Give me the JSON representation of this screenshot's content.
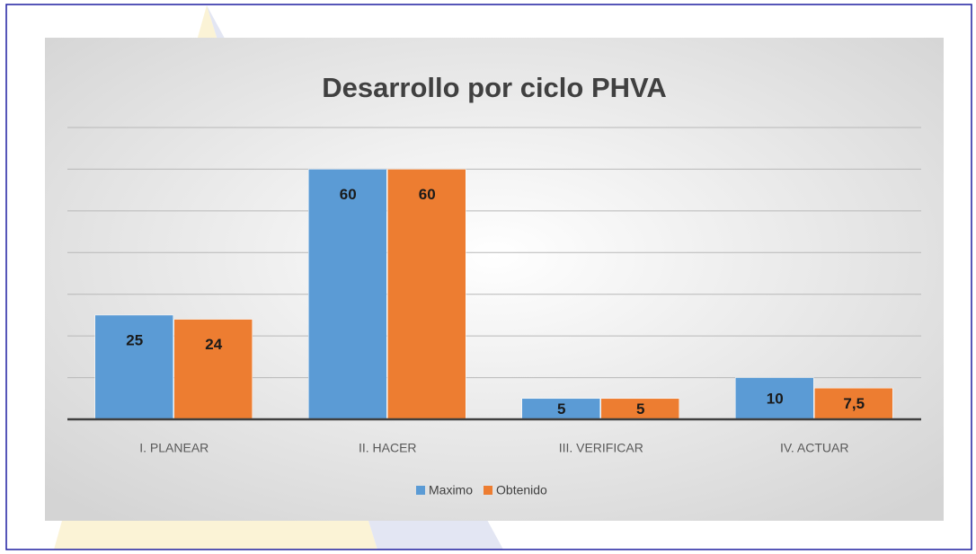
{
  "chart_data": {
    "type": "bar",
    "title": "Desarrollo por ciclo PHVA",
    "categories": [
      "I. PLANEAR",
      "II. HACER",
      "III. VERIFICAR",
      "IV. ACTUAR"
    ],
    "series": [
      {
        "name": "Maximo",
        "color": "#5b9bd5",
        "values": [
          25,
          60,
          5,
          10
        ]
      },
      {
        "name": "Obtenido",
        "color": "#ed7d31",
        "values": [
          24,
          60,
          5,
          7.5
        ],
        "value_labels": [
          "24",
          "60",
          "5",
          "7,5"
        ]
      }
    ],
    "ylim": [
      0,
      70
    ],
    "yticks": [
      0,
      10,
      20,
      30,
      40,
      50,
      60,
      70
    ],
    "grid": true,
    "legend": "bottom"
  }
}
